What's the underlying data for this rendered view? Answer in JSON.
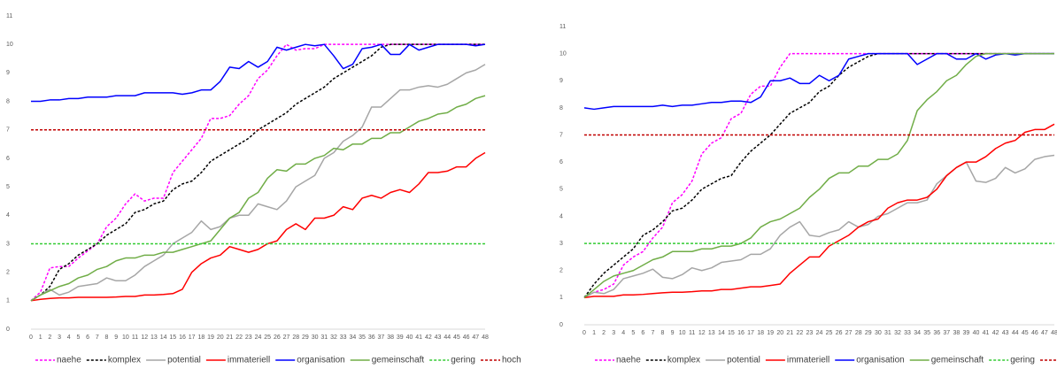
{
  "chart_data": [
    {
      "type": "line",
      "x": [
        0,
        1,
        2,
        3,
        4,
        5,
        6,
        7,
        8,
        9,
        10,
        11,
        12,
        13,
        14,
        15,
        16,
        17,
        18,
        19,
        20,
        21,
        22,
        23,
        24,
        25,
        26,
        27,
        28,
        29,
        30,
        31,
        32,
        33,
        34,
        35,
        36,
        37,
        38,
        39,
        40,
        41,
        42,
        43,
        44,
        45,
        46,
        47,
        48
      ],
      "xlim": [
        0,
        48
      ],
      "ylim": [
        0,
        11
      ],
      "yticks": [
        0,
        1,
        2,
        3,
        4,
        5,
        6,
        7,
        8,
        9,
        10,
        11
      ],
      "legend": "bottom",
      "series": [
        {
          "name": "naehe",
          "color": "#ff00ff",
          "dash": true,
          "values": [
            1,
            1.3,
            2.15,
            2.2,
            2.2,
            2.5,
            2.75,
            3.0,
            3.6,
            3.9,
            4.4,
            4.75,
            4.5,
            4.6,
            4.6,
            5.5,
            5.9,
            6.3,
            6.7,
            7.4,
            7.4,
            7.5,
            7.9,
            8.2,
            8.8,
            9.1,
            9.6,
            10,
            9.8,
            9.85,
            9.85,
            10,
            10,
            10,
            10,
            10,
            10,
            10,
            10,
            10,
            10,
            10,
            10,
            10,
            10,
            10,
            10,
            10,
            10
          ]
        },
        {
          "name": "komplex",
          "color": "#000000",
          "dash": true,
          "values": [
            1,
            1.2,
            1.5,
            2.1,
            2.3,
            2.6,
            2.8,
            3.0,
            3.3,
            3.5,
            3.7,
            4.1,
            4.2,
            4.4,
            4.5,
            4.9,
            5.1,
            5.2,
            5.5,
            5.9,
            6.1,
            6.3,
            6.5,
            6.7,
            7.0,
            7.2,
            7.4,
            7.6,
            7.9,
            8.1,
            8.3,
            8.5,
            8.8,
            9.0,
            9.2,
            9.4,
            9.6,
            9.9,
            10,
            10,
            10,
            10,
            10,
            10,
            10,
            10,
            10,
            10,
            10
          ]
        },
        {
          "name": "potential",
          "color": "#a6a6a6",
          "dash": false,
          "values": [
            1,
            1.2,
            1.4,
            1.2,
            1.3,
            1.5,
            1.55,
            1.6,
            1.8,
            1.7,
            1.7,
            1.9,
            2.2,
            2.4,
            2.6,
            3.0,
            3.2,
            3.4,
            3.8,
            3.5,
            3.6,
            3.9,
            4.0,
            4.0,
            4.4,
            4.3,
            4.2,
            4.5,
            5.0,
            5.2,
            5.4,
            6.0,
            6.2,
            6.6,
            6.8,
            7.1,
            7.8,
            7.8,
            8.1,
            8.4,
            8.4,
            8.5,
            8.55,
            8.5,
            8.6,
            8.8,
            9.0,
            9.1,
            9.3
          ]
        },
        {
          "name": "immateriell",
          "color": "#ff0000",
          "dash": false,
          "values": [
            1,
            1.05,
            1.08,
            1.1,
            1.1,
            1.12,
            1.12,
            1.12,
            1.12,
            1.13,
            1.15,
            1.15,
            1.2,
            1.2,
            1.22,
            1.25,
            1.4,
            2.0,
            2.3,
            2.5,
            2.6,
            2.9,
            2.8,
            2.7,
            2.8,
            3.0,
            3.1,
            3.5,
            3.7,
            3.5,
            3.9,
            3.9,
            4.0,
            4.3,
            4.2,
            4.6,
            4.7,
            4.6,
            4.8,
            4.9,
            4.8,
            5.1,
            5.5,
            5.5,
            5.55,
            5.7,
            5.7,
            6.0,
            6.2
          ]
        },
        {
          "name": "organisation",
          "color": "#0000ff",
          "dash": false,
          "values": [
            8,
            8,
            8.05,
            8.05,
            8.1,
            8.1,
            8.15,
            8.15,
            8.15,
            8.2,
            8.2,
            8.2,
            8.3,
            8.3,
            8.3,
            8.3,
            8.25,
            8.3,
            8.4,
            8.4,
            8.7,
            9.2,
            9.15,
            9.4,
            9.2,
            9.4,
            9.9,
            9.8,
            9.9,
            10,
            9.95,
            10,
            9.6,
            9.15,
            9.3,
            9.85,
            9.9,
            10,
            9.65,
            9.65,
            10,
            9.8,
            9.9,
            10,
            10,
            10,
            10,
            9.95,
            10
          ]
        },
        {
          "name": "gemeinschaft",
          "color": "#70ad47",
          "dash": false,
          "values": [
            1,
            1.2,
            1.35,
            1.5,
            1.6,
            1.8,
            1.9,
            2.1,
            2.2,
            2.4,
            2.5,
            2.5,
            2.6,
            2.6,
            2.7,
            2.7,
            2.8,
            2.9,
            3.0,
            3.1,
            3.5,
            3.9,
            4.1,
            4.6,
            4.8,
            5.3,
            5.6,
            5.55,
            5.8,
            5.8,
            6.0,
            6.1,
            6.35,
            6.3,
            6.5,
            6.5,
            6.7,
            6.7,
            6.9,
            6.9,
            7.1,
            7.3,
            7.4,
            7.55,
            7.6,
            7.8,
            7.9,
            8.1,
            8.2
          ]
        },
        {
          "name": "gering",
          "color": "#33cc33",
          "dash": true,
          "values": [
            3,
            3,
            3,
            3,
            3,
            3,
            3,
            3,
            3,
            3,
            3,
            3,
            3,
            3,
            3,
            3,
            3,
            3,
            3,
            3,
            3,
            3,
            3,
            3,
            3,
            3,
            3,
            3,
            3,
            3,
            3,
            3,
            3,
            3,
            3,
            3,
            3,
            3,
            3,
            3,
            3,
            3,
            3,
            3,
            3,
            3,
            3,
            3,
            3
          ]
        },
        {
          "name": "hoch",
          "color": "#c00000",
          "dash": true,
          "values": [
            7,
            7,
            7,
            7,
            7,
            7,
            7,
            7,
            7,
            7,
            7,
            7,
            7,
            7,
            7,
            7,
            7,
            7,
            7,
            7,
            7,
            7,
            7,
            7,
            7,
            7,
            7,
            7,
            7,
            7,
            7,
            7,
            7,
            7,
            7,
            7,
            7,
            7,
            7,
            7,
            7,
            7,
            7,
            7,
            7,
            7,
            7,
            7,
            7
          ]
        }
      ]
    },
    {
      "type": "line",
      "x": [
        0,
        1,
        2,
        3,
        4,
        5,
        6,
        7,
        8,
        9,
        10,
        11,
        12,
        13,
        14,
        15,
        16,
        17,
        18,
        19,
        20,
        21,
        22,
        23,
        24,
        25,
        26,
        27,
        28,
        29,
        30,
        31,
        32,
        33,
        34,
        35,
        36,
        37,
        38,
        39,
        40,
        41,
        42,
        43,
        44,
        45,
        46,
        47,
        48
      ],
      "xlim": [
        0,
        48
      ],
      "ylim": [
        0,
        11
      ],
      "yticks": [
        0,
        1,
        2,
        3,
        4,
        5,
        6,
        7,
        8,
        9,
        10,
        11
      ],
      "legend": "bottom",
      "series": [
        {
          "name": "naehe",
          "color": "#ff00ff",
          "dash": true,
          "values": [
            1,
            1.2,
            1.3,
            1.5,
            2.2,
            2.5,
            2.7,
            3.2,
            3.6,
            4.5,
            4.8,
            5.3,
            6.3,
            6.7,
            6.9,
            7.6,
            7.8,
            8.5,
            8.8,
            8.8,
            9.5,
            10,
            10,
            10,
            10,
            10,
            10,
            10,
            10,
            10,
            10,
            10,
            10,
            10,
            10,
            10,
            10,
            10,
            10,
            10,
            10,
            10,
            10,
            10,
            10,
            10,
            10,
            10,
            10
          ]
        },
        {
          "name": "komplex",
          "color": "#000000",
          "dash": true,
          "values": [
            1,
            1.5,
            1.9,
            2.2,
            2.5,
            2.8,
            3.3,
            3.5,
            3.8,
            4.2,
            4.3,
            4.6,
            5.0,
            5.2,
            5.4,
            5.5,
            6.0,
            6.4,
            6.7,
            7.0,
            7.4,
            7.8,
            8.0,
            8.2,
            8.6,
            8.8,
            9.2,
            9.5,
            9.7,
            9.9,
            10,
            10,
            10,
            10,
            10,
            10,
            10,
            10,
            10,
            10,
            10,
            10,
            10,
            10,
            10,
            10,
            10,
            10,
            10
          ]
        },
        {
          "name": "potential",
          "color": "#a6a6a6",
          "dash": false,
          "values": [
            1,
            1.2,
            1.15,
            1.3,
            1.7,
            1.8,
            1.9,
            2.05,
            1.75,
            1.7,
            1.85,
            2.1,
            2.0,
            2.1,
            2.3,
            2.35,
            2.4,
            2.6,
            2.6,
            2.8,
            3.3,
            3.6,
            3.8,
            3.3,
            3.25,
            3.4,
            3.5,
            3.8,
            3.6,
            3.7,
            4.0,
            4.1,
            4.3,
            4.5,
            4.5,
            4.6,
            5.2,
            5.5,
            5.8,
            6.0,
            5.3,
            5.25,
            5.4,
            5.8,
            5.6,
            5.75,
            6.1,
            6.2,
            6.25
          ]
        },
        {
          "name": "immateriell",
          "color": "#ff0000",
          "dash": false,
          "values": [
            1,
            1.05,
            1.05,
            1.05,
            1.1,
            1.1,
            1.12,
            1.15,
            1.18,
            1.2,
            1.2,
            1.22,
            1.25,
            1.25,
            1.3,
            1.3,
            1.35,
            1.4,
            1.4,
            1.45,
            1.5,
            1.9,
            2.2,
            2.5,
            2.5,
            2.9,
            3.1,
            3.3,
            3.6,
            3.8,
            3.9,
            4.3,
            4.5,
            4.6,
            4.6,
            4.7,
            5.0,
            5.5,
            5.8,
            6.0,
            6.0,
            6.2,
            6.5,
            6.7,
            6.8,
            7.1,
            7.2,
            7.2,
            7.4
          ]
        },
        {
          "name": "organisation",
          "color": "#0000ff",
          "dash": false,
          "values": [
            8,
            7.95,
            8,
            8.05,
            8.05,
            8.05,
            8.05,
            8.05,
            8.1,
            8.05,
            8.1,
            8.1,
            8.15,
            8.2,
            8.2,
            8.25,
            8.25,
            8.2,
            8.4,
            9.0,
            9.0,
            9.1,
            8.9,
            8.9,
            9.2,
            9.0,
            9.2,
            9.8,
            9.9,
            10,
            10,
            10,
            10,
            10,
            9.6,
            9.8,
            10,
            10,
            9.8,
            9.8,
            10,
            9.8,
            9.95,
            10,
            9.95,
            10,
            10,
            10,
            10
          ]
        },
        {
          "name": "gemeinschaft",
          "color": "#70ad47",
          "dash": false,
          "values": [
            1,
            1.3,
            1.6,
            1.8,
            1.9,
            2.0,
            2.2,
            2.4,
            2.5,
            2.7,
            2.7,
            2.7,
            2.8,
            2.8,
            2.9,
            2.9,
            3.0,
            3.2,
            3.6,
            3.8,
            3.9,
            4.1,
            4.3,
            4.7,
            5.0,
            5.4,
            5.6,
            5.6,
            5.85,
            5.85,
            6.1,
            6.1,
            6.3,
            6.8,
            7.9,
            8.3,
            8.6,
            9.0,
            9.2,
            9.6,
            9.9,
            10,
            10,
            10,
            10,
            10,
            10,
            10,
            10
          ]
        },
        {
          "name": "gering",
          "color": "#33cc33",
          "dash": true,
          "values": [
            3,
            3,
            3,
            3,
            3,
            3,
            3,
            3,
            3,
            3,
            3,
            3,
            3,
            3,
            3,
            3,
            3,
            3,
            3,
            3,
            3,
            3,
            3,
            3,
            3,
            3,
            3,
            3,
            3,
            3,
            3,
            3,
            3,
            3,
            3,
            3,
            3,
            3,
            3,
            3,
            3,
            3,
            3,
            3,
            3,
            3,
            3,
            3,
            3
          ]
        },
        {
          "name": "hoch",
          "color": "#c00000",
          "dash": true,
          "values": [
            7,
            7,
            7,
            7,
            7,
            7,
            7,
            7,
            7,
            7,
            7,
            7,
            7,
            7,
            7,
            7,
            7,
            7,
            7,
            7,
            7,
            7,
            7,
            7,
            7,
            7,
            7,
            7,
            7,
            7,
            7,
            7,
            7,
            7,
            7,
            7,
            7,
            7,
            7,
            7,
            7,
            7,
            7,
            7,
            7,
            7,
            7,
            7,
            7
          ]
        }
      ]
    }
  ]
}
